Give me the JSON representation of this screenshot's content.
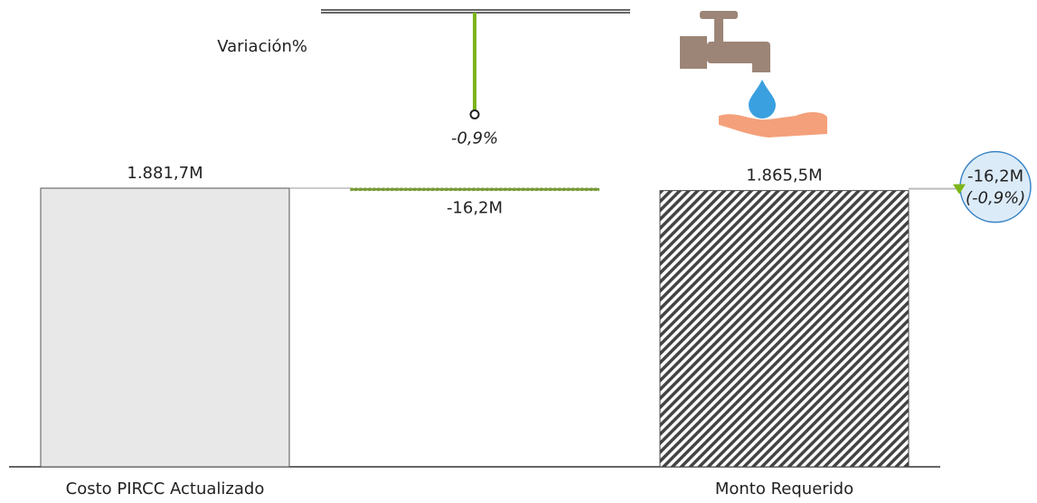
{
  "chart_data": {
    "type": "waterfall",
    "categories": [
      "Costo PIRCC Actualizado",
      null,
      "Monto Requerido"
    ],
    "values": [
      1881.7,
      -16.2,
      1865.5
    ],
    "value_labels": [
      "1.881,7M",
      "-16,2M",
      "1.865,5M"
    ],
    "colors": [
      "#e8e8e8",
      "#7a9a3a",
      "#444444"
    ],
    "variance": {
      "label": "Variación%",
      "value": -0.9,
      "value_label": "-0,9%",
      "color": "#7cb518"
    },
    "total_variance": {
      "values": [
        -16.2,
        -0.9
      ],
      "value_labels": [
        "-16,2M",
        "(-0,9%)"
      ],
      "color": "#7cb518"
    }
  }
}
